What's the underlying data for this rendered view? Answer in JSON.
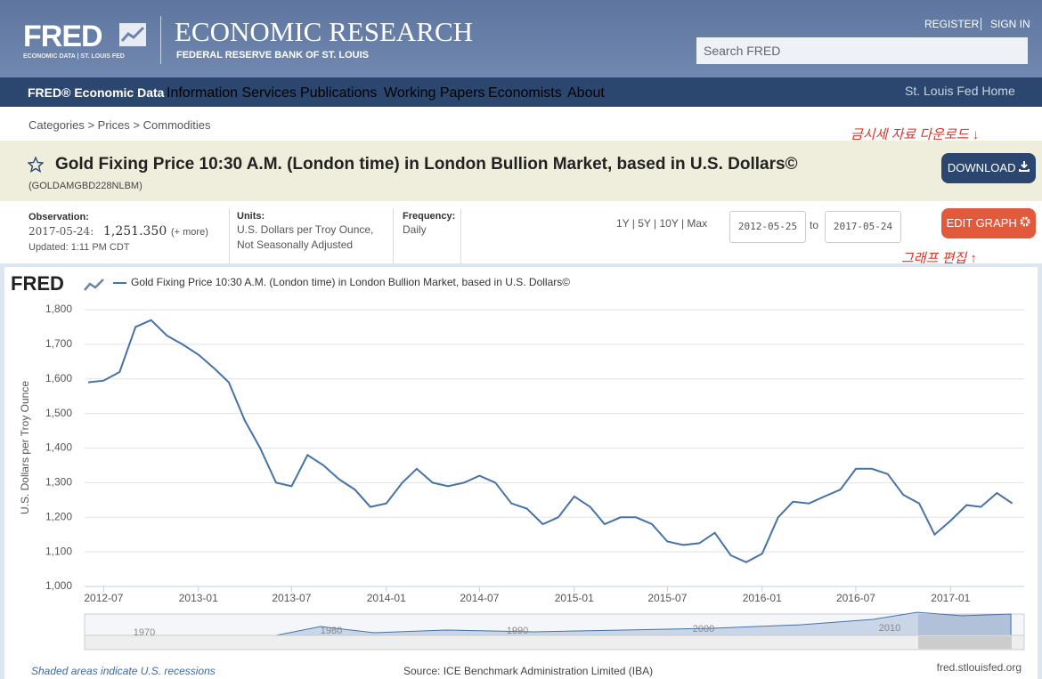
{
  "header": {
    "logo": "FRED",
    "logo_sub": "ECONOMIC DATA | ST. LOUIS FED",
    "title": "ECONOMIC RESEARCH",
    "subtitle": "FEDERAL RESERVE BANK OF ST. LOUIS",
    "register": "REGISTER",
    "sign_in": "SIGN IN",
    "search_placeholder": "Search FRED"
  },
  "nav": {
    "items": [
      "FRED® Economic Data",
      "Information Services",
      "Publications",
      "Working Papers",
      "Economists",
      "About"
    ],
    "home": "St. Louis Fed Home"
  },
  "breadcrumb": "Categories > Prices > Commodities",
  "annotations": [
    "금시세 자료 다운로드 ↓",
    "그래프 편집 ↑"
  ],
  "series_header": {
    "id": "(GOLDAMGBD228NLBM)",
    "download": "DOWNLOAD"
  },
  "observation": {
    "label": "Observation:",
    "date": "2017-05-24:",
    "value": "1,251.350",
    "more": "(+ more)",
    "updated": "Updated: 1:11 PM CDT"
  },
  "units": {
    "label": "Units:",
    "lines": [
      "U.S. Dollars per Troy Ounce,",
      "Not Seasonally Adjusted"
    ]
  },
  "frequency": {
    "label": "Frequency:",
    "value": "Daily"
  },
  "ranges": "1Y | 5Y | 10Y | Max",
  "date_to": "to",
  "edit_graph": "EDIT GRAPH",
  "chart_data": {
    "type": "line",
    "logo": "FRED",
    "y_label": "U.S. Dollars per Troy Ounce",
    "grid": true,
    "x": [
      "2012-06",
      "2012-07",
      "2012-08",
      "2012-09",
      "2012-10",
      "2012-11",
      "2012-12",
      "2013-01",
      "2013-02",
      "2013-03",
      "2013-04",
      "2013-05",
      "2013-06",
      "2013-07",
      "2013-08",
      "2013-09",
      "2013-10",
      "2013-11",
      "2013-12",
      "2014-01",
      "2014-02",
      "2014-03",
      "2014-04",
      "2014-05",
      "2014-06",
      "2014-07",
      "2014-08",
      "2014-09",
      "2014-10",
      "2014-11",
      "2014-12",
      "2015-01",
      "2015-02",
      "2015-03",
      "2015-04",
      "2015-05",
      "2015-06",
      "2015-07",
      "2015-08",
      "2015-09",
      "2015-10",
      "2015-11",
      "2015-12",
      "2016-01",
      "2016-02",
      "2016-03",
      "2016-04",
      "2016-05",
      "2016-06",
      "2016-07",
      "2016-08",
      "2016-09",
      "2016-10",
      "2016-11",
      "2016-12",
      "2017-01",
      "2017-02",
      "2017-03",
      "2017-04",
      "2017-05"
    ],
    "series": [
      {
        "name": "Gold Fixing Price 10:30 A.M. (London time) in London Bullion Market, based in U.S. Dollars©",
        "color": "#4572a7",
        "values": [
          1590,
          1595,
          1620,
          1750,
          1770,
          1725,
          1700,
          1670,
          1630,
          1590,
          1480,
          1400,
          1300,
          1290,
          1380,
          1350,
          1310,
          1280,
          1230,
          1240,
          1300,
          1340,
          1300,
          1290,
          1300,
          1320,
          1300,
          1240,
          1225,
          1180,
          1200,
          1260,
          1230,
          1180,
          1200,
          1200,
          1180,
          1130,
          1120,
          1125,
          1155,
          1090,
          1070,
          1095,
          1200,
          1245,
          1240,
          1260,
          1280,
          1340,
          1340,
          1325,
          1265,
          1240,
          1150,
          1190,
          1235,
          1230,
          1270,
          1240
        ]
      }
    ],
    "xlim": [
      "2012-05-25",
      "2017-05-24"
    ],
    "xticks": [
      "2012-07",
      "2013-01",
      "2013-07",
      "2014-01",
      "2014-07",
      "2015-01",
      "2015-07",
      "2016-01",
      "2016-07",
      "2017-01"
    ],
    "ylim": [
      1000,
      1800
    ],
    "yticks": [
      {
        "value": 1000,
        "label": "1,000"
      },
      {
        "value": 1100,
        "label": "1,100"
      },
      {
        "value": 1200,
        "label": "1,200"
      },
      {
        "value": 1300,
        "label": "1,300"
      },
      {
        "value": 1400,
        "label": "1,400"
      },
      {
        "value": 1500,
        "label": "1,500"
      },
      {
        "value": 1600,
        "label": "1,600"
      },
      {
        "value": 1700,
        "label": "1,700"
      },
      {
        "value": 1800,
        "label": "1,800"
      }
    ]
  },
  "navigator": {
    "labels": [
      "1970",
      "1980",
      "1990",
      "2000",
      "2010"
    ]
  },
  "footer": {
    "recessions": "Shaded areas indicate U.S. recessions",
    "source": "Source: ICE Benchmark Administration Limited (IBA)",
    "site": "fred.stlouisfed.org"
  }
}
